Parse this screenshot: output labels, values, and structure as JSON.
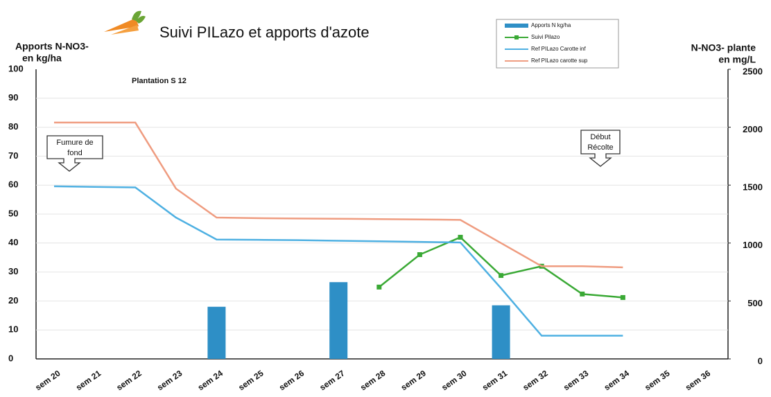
{
  "chart_data": {
    "type": "bar_line",
    "title": "Suivi PILazo et apports d'azote",
    "y_label": [
      "Apports N-NO3-",
      "en kg/ha"
    ],
    "y2_label": [
      "N-NO3- plante",
      "en mg/L"
    ],
    "categories": [
      "sem 20",
      "sem 21",
      "sem 22",
      "sem 23",
      "sem 24",
      "sem 25",
      "sem 26",
      "sem 27",
      "sem 28",
      "sem 29",
      "sem 30",
      "sem 31",
      "sem 32",
      "sem 33",
      "sem 34",
      "sem 35",
      "sem 36"
    ],
    "ylim": [
      0,
      100
    ],
    "yticks": [
      0,
      10,
      20,
      30,
      40,
      50,
      60,
      70,
      80,
      90,
      100
    ],
    "y2lim": [
      0,
      2500
    ],
    "y2ticks": [
      0,
      500,
      1000,
      1500,
      2000,
      2500
    ],
    "grid": true,
    "legend": "top-right",
    "series": [
      {
        "name": "Apports N kg/ha",
        "type": "bar",
        "axis": "y",
        "color": "#2e8fc6",
        "values": [
          null,
          null,
          null,
          null,
          18,
          null,
          null,
          26.5,
          null,
          null,
          null,
          18.5,
          null,
          null,
          null,
          null,
          null
        ]
      },
      {
        "name": "Suivi Pilazo",
        "type": "line",
        "axis": "y2",
        "color": "#3aa935",
        "markers": true,
        "values": [
          null,
          null,
          null,
          null,
          null,
          null,
          null,
          null,
          620,
          900,
          1050,
          720,
          800,
          560,
          530,
          null,
          null
        ]
      },
      {
        "name": "Ref PILazo Carotte inf",
        "type": "line",
        "axis": "y2",
        "color": "#4eb0e2",
        "values": [
          1490,
          1485,
          1480,
          1220,
          1030,
          1028,
          1025,
          1020,
          1015,
          1010,
          1005,
          610,
          200,
          200,
          200,
          null,
          null
        ]
      },
      {
        "name": "Ref PILazo carotte sup",
        "type": "line",
        "axis": "y2",
        "color": "#ef9c80",
        "values": [
          2040,
          2040,
          2040,
          1470,
          1220,
          1215,
          1212,
          1210,
          1207,
          1204,
          1200,
          1000,
          800,
          800,
          790,
          null,
          null
        ]
      }
    ],
    "annotations": [
      {
        "text": [
          "Plantation S  12"
        ]
      },
      {
        "text": [
          "Fumure de",
          "fond"
        ]
      },
      {
        "text": [
          "Début",
          "Récolte"
        ]
      }
    ]
  }
}
